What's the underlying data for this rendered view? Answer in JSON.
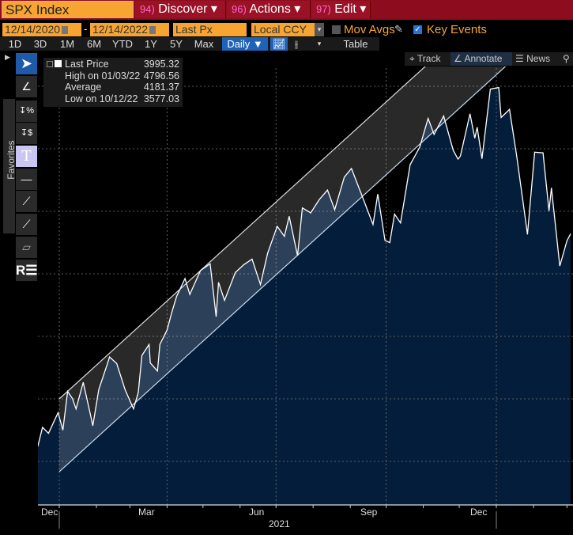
{
  "header": {
    "ticker": "SPX Index",
    "menus": [
      {
        "num": "94)",
        "label": "Discover ▾"
      },
      {
        "num": "96)",
        "label": "Actions ▾"
      },
      {
        "num": "97)",
        "label": "Edit ▾"
      }
    ]
  },
  "controls": {
    "start_date": "12/14/2020",
    "dash": "-",
    "end_date": "12/14/2022",
    "field": "Last Px",
    "currency": "Local CCY",
    "mov_avgs": "Mov Avgs",
    "mov_avgs_checked": false,
    "key_events": "Key Events",
    "key_events_checked": true
  },
  "periods": [
    "1D",
    "3D",
    "1M",
    "6M",
    "YTD",
    "1Y",
    "5Y",
    "Max"
  ],
  "frequency": "Daily ▼",
  "table_label": "Table",
  "chart_toolbar": {
    "track": "Track",
    "annotate": "Annotate",
    "news": "News"
  },
  "favorites_label": "Favorites",
  "tools": [
    "pointer-icon",
    "pen-icon",
    "percent-marker-icon",
    "dollar-marker-icon",
    "text-icon",
    "horizontal-line-icon",
    "trendline-icon",
    "ray-icon",
    "channel-icon",
    "regression-icon"
  ],
  "legend": [
    {
      "label": "Last Price",
      "value": "3995.32"
    },
    {
      "label": "High on 01/03/22",
      "value": "4796.56"
    },
    {
      "label": "Average",
      "value": "4181.37"
    },
    {
      "label": "Low on 10/12/22",
      "value": "3577.03"
    }
  ],
  "colors": {
    "area": "#041d3a",
    "line": "#ffffff",
    "header_red": "#8d0c1e",
    "orange": "#f7a433",
    "accent_blue": "#1f63b8"
  },
  "chart_data": {
    "type": "area",
    "ylim": [
      3400,
      4900
    ],
    "grid": true,
    "x_ticks": [
      {
        "label": "Dec",
        "date": "2020-12-01"
      },
      {
        "label": "Mar",
        "date": "2021-03-01"
      },
      {
        "label": "Jun",
        "date": "2021-06-01"
      },
      {
        "label": "Sep",
        "date": "2021-09-01"
      },
      {
        "label": "Dec",
        "date": "2021-12-01"
      }
    ],
    "year_label": "2021",
    "series": [
      {
        "values": [
          [
            "2020-12-14",
            3647
          ],
          [
            "2020-12-18",
            3709
          ],
          [
            "2020-12-23",
            3690
          ],
          [
            "2020-12-31",
            3756
          ],
          [
            "2021-01-04",
            3700
          ],
          [
            "2021-01-08",
            3824
          ],
          [
            "2021-01-12",
            3801
          ],
          [
            "2021-01-15",
            3768
          ],
          [
            "2021-01-21",
            3853
          ],
          [
            "2021-01-27",
            3750
          ],
          [
            "2021-01-29",
            3714
          ],
          [
            "2021-02-03",
            3830
          ],
          [
            "2021-02-10",
            3910
          ],
          [
            "2021-02-12",
            3934
          ],
          [
            "2021-02-18",
            3913
          ],
          [
            "2021-02-25",
            3829
          ],
          [
            "2021-03-04",
            3768
          ],
          [
            "2021-03-08",
            3821
          ],
          [
            "2021-03-11",
            3939
          ],
          [
            "2021-03-17",
            3974
          ],
          [
            "2021-03-18",
            3915
          ],
          [
            "2021-03-24",
            3889
          ],
          [
            "2021-03-26",
            3974
          ],
          [
            "2021-04-01",
            4020
          ],
          [
            "2021-04-05",
            4077
          ],
          [
            "2021-04-09",
            4128
          ],
          [
            "2021-04-16",
            4185
          ],
          [
            "2021-04-20",
            4134
          ],
          [
            "2021-04-29",
            4211
          ],
          [
            "2021-05-07",
            4232
          ],
          [
            "2021-05-12",
            4063
          ],
          [
            "2021-05-14",
            4173
          ],
          [
            "2021-05-19",
            4115
          ],
          [
            "2021-05-28",
            4204
          ],
          [
            "2021-06-04",
            4229
          ],
          [
            "2021-06-11",
            4247
          ],
          [
            "2021-06-18",
            4166
          ],
          [
            "2021-06-24",
            4266
          ],
          [
            "2021-07-02",
            4352
          ],
          [
            "2021-07-08",
            4320
          ],
          [
            "2021-07-12",
            4384
          ],
          [
            "2021-07-19",
            4258
          ],
          [
            "2021-07-23",
            4411
          ],
          [
            "2021-07-30",
            4395
          ],
          [
            "2021-08-06",
            4437
          ],
          [
            "2021-08-13",
            4468
          ],
          [
            "2021-08-19",
            4405
          ],
          [
            "2021-08-27",
            4509
          ],
          [
            "2021-09-02",
            4537
          ],
          [
            "2021-09-10",
            4458
          ],
          [
            "2021-09-20",
            4358
          ],
          [
            "2021-09-24",
            4455
          ],
          [
            "2021-09-30",
            4307
          ],
          [
            "2021-10-04",
            4300
          ],
          [
            "2021-10-08",
            4391
          ],
          [
            "2021-10-13",
            4363
          ],
          [
            "2021-10-21",
            4549
          ],
          [
            "2021-10-29",
            4605
          ],
          [
            "2021-11-05",
            4697
          ],
          [
            "2021-11-10",
            4646
          ],
          [
            "2021-11-18",
            4705
          ],
          [
            "2021-11-26",
            4595
          ],
          [
            "2021-11-30",
            4567
          ],
          [
            "2021-12-02",
            4577
          ],
          [
            "2021-12-10",
            4712
          ],
          [
            "2021-12-14",
            4634
          ],
          [
            "2021-12-16",
            4669
          ],
          [
            "2021-12-20",
            4568
          ],
          [
            "2021-12-27",
            4791
          ],
          [
            "2022-01-03",
            4796
          ],
          [
            "2022-01-05",
            4700
          ],
          [
            "2022-01-12",
            4726
          ],
          [
            "2022-01-18",
            4577
          ],
          [
            "2022-01-24",
            4410
          ],
          [
            "2022-01-27",
            4326
          ],
          [
            "2022-02-02",
            4589
          ],
          [
            "2022-02-09",
            4587
          ],
          [
            "2022-02-14",
            4401
          ],
          [
            "2022-02-16",
            4475
          ],
          [
            "2022-02-23",
            4225
          ],
          [
            "2022-03-01",
            4306
          ],
          [
            "2022-03-04",
            4328
          ]
        ]
      }
    ],
    "channel": {
      "start": [
        "2021-01-01",
        3800
      ],
      "end": [
        "2022-01-01",
        5070
      ],
      "width_points": 233
    }
  }
}
